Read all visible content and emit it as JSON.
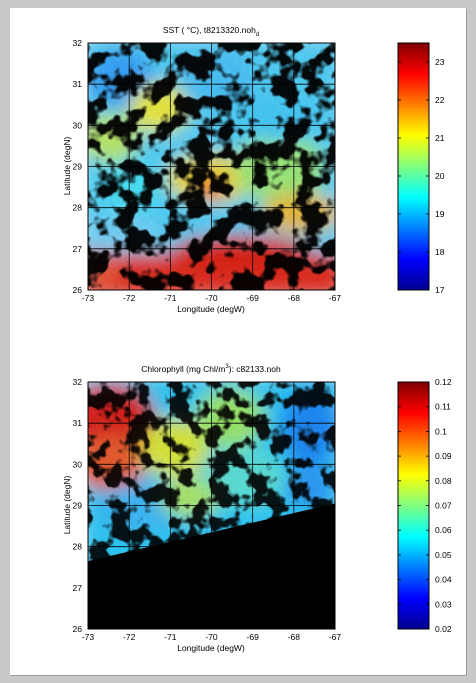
{
  "figure": {
    "background_color": "#c9c9c9",
    "page_color": "#ffffff"
  },
  "chart_data": [
    {
      "type": "heatmap",
      "title": "SST ( °C), t8213320.noh",
      "title_subscript": "d",
      "xlabel": "Longitude (degW)",
      "ylabel": "Latitude (degN)",
      "x_ticks": [
        "-73",
        "-72",
        "-71",
        "-70",
        "-69",
        "-68",
        "-67"
      ],
      "y_ticks": [
        "32",
        "31",
        "30",
        "29",
        "28",
        "27",
        "26"
      ],
      "xlim": [
        -73,
        -67
      ],
      "ylim": [
        26,
        32
      ],
      "grid": true,
      "colorbar": {
        "ticks": [
          "23",
          "22",
          "21",
          "20",
          "19",
          "18",
          "17"
        ],
        "range": [
          17,
          23.5
        ],
        "colormap": "jet"
      },
      "field_summary": [
        {
          "region": "north-west (lon -73 to -71, lat 29.5 to 32)",
          "value_range": [
            18.5,
            21.5
          ]
        },
        {
          "region": "south (lat 26 to 27)",
          "value_range": [
            22.5,
            23.5
          ]
        },
        {
          "region": "east-central (lon -70 to -67, lat 27 to 30)",
          "value_range": [
            20.5,
            22
          ]
        }
      ],
      "cloud_mask_color": "#000000"
    },
    {
      "type": "heatmap",
      "title": "Chlorophyll (mg Chl/m 3): c82133.noh",
      "title_superscript": "3",
      "xlabel": "Longitude (degW)",
      "ylabel": "Latitude (degN)",
      "x_ticks": [
        "-73",
        "-72",
        "-71",
        "-70",
        "-69",
        "-68",
        "-67"
      ],
      "y_ticks": [
        "32",
        "31",
        "30",
        "29",
        "28",
        "27",
        "26"
      ],
      "xlim": [
        -73,
        -67
      ],
      "ylim": [
        26,
        32
      ],
      "grid": true,
      "colorbar": {
        "ticks": [
          "0.12",
          "0.11",
          "0.1",
          "0.09",
          "0.08",
          "0.07",
          "0.06",
          "0.05",
          "0.04",
          "0.03",
          "0.02"
        ],
        "range": [
          0.02,
          0.12
        ],
        "colormap": "jet"
      },
      "field_summary": [
        {
          "region": "north-west (lon -73 to -71.5, lat 30 to 32)",
          "value_range": [
            0.1,
            0.12
          ]
        },
        {
          "region": "central (lon -71 to -69, lat 29 to 31)",
          "value_range": [
            0.07,
            0.09
          ]
        },
        {
          "region": "east (lon -68 to -67, lat 29 to 32)",
          "value_range": [
            0.04,
            0.06
          ]
        }
      ],
      "no_data_boundary": {
        "from": [
          -73,
          27.65
        ],
        "to": [
          -67,
          29.05
        ]
      },
      "cloud_mask_color": "#000000"
    }
  ]
}
